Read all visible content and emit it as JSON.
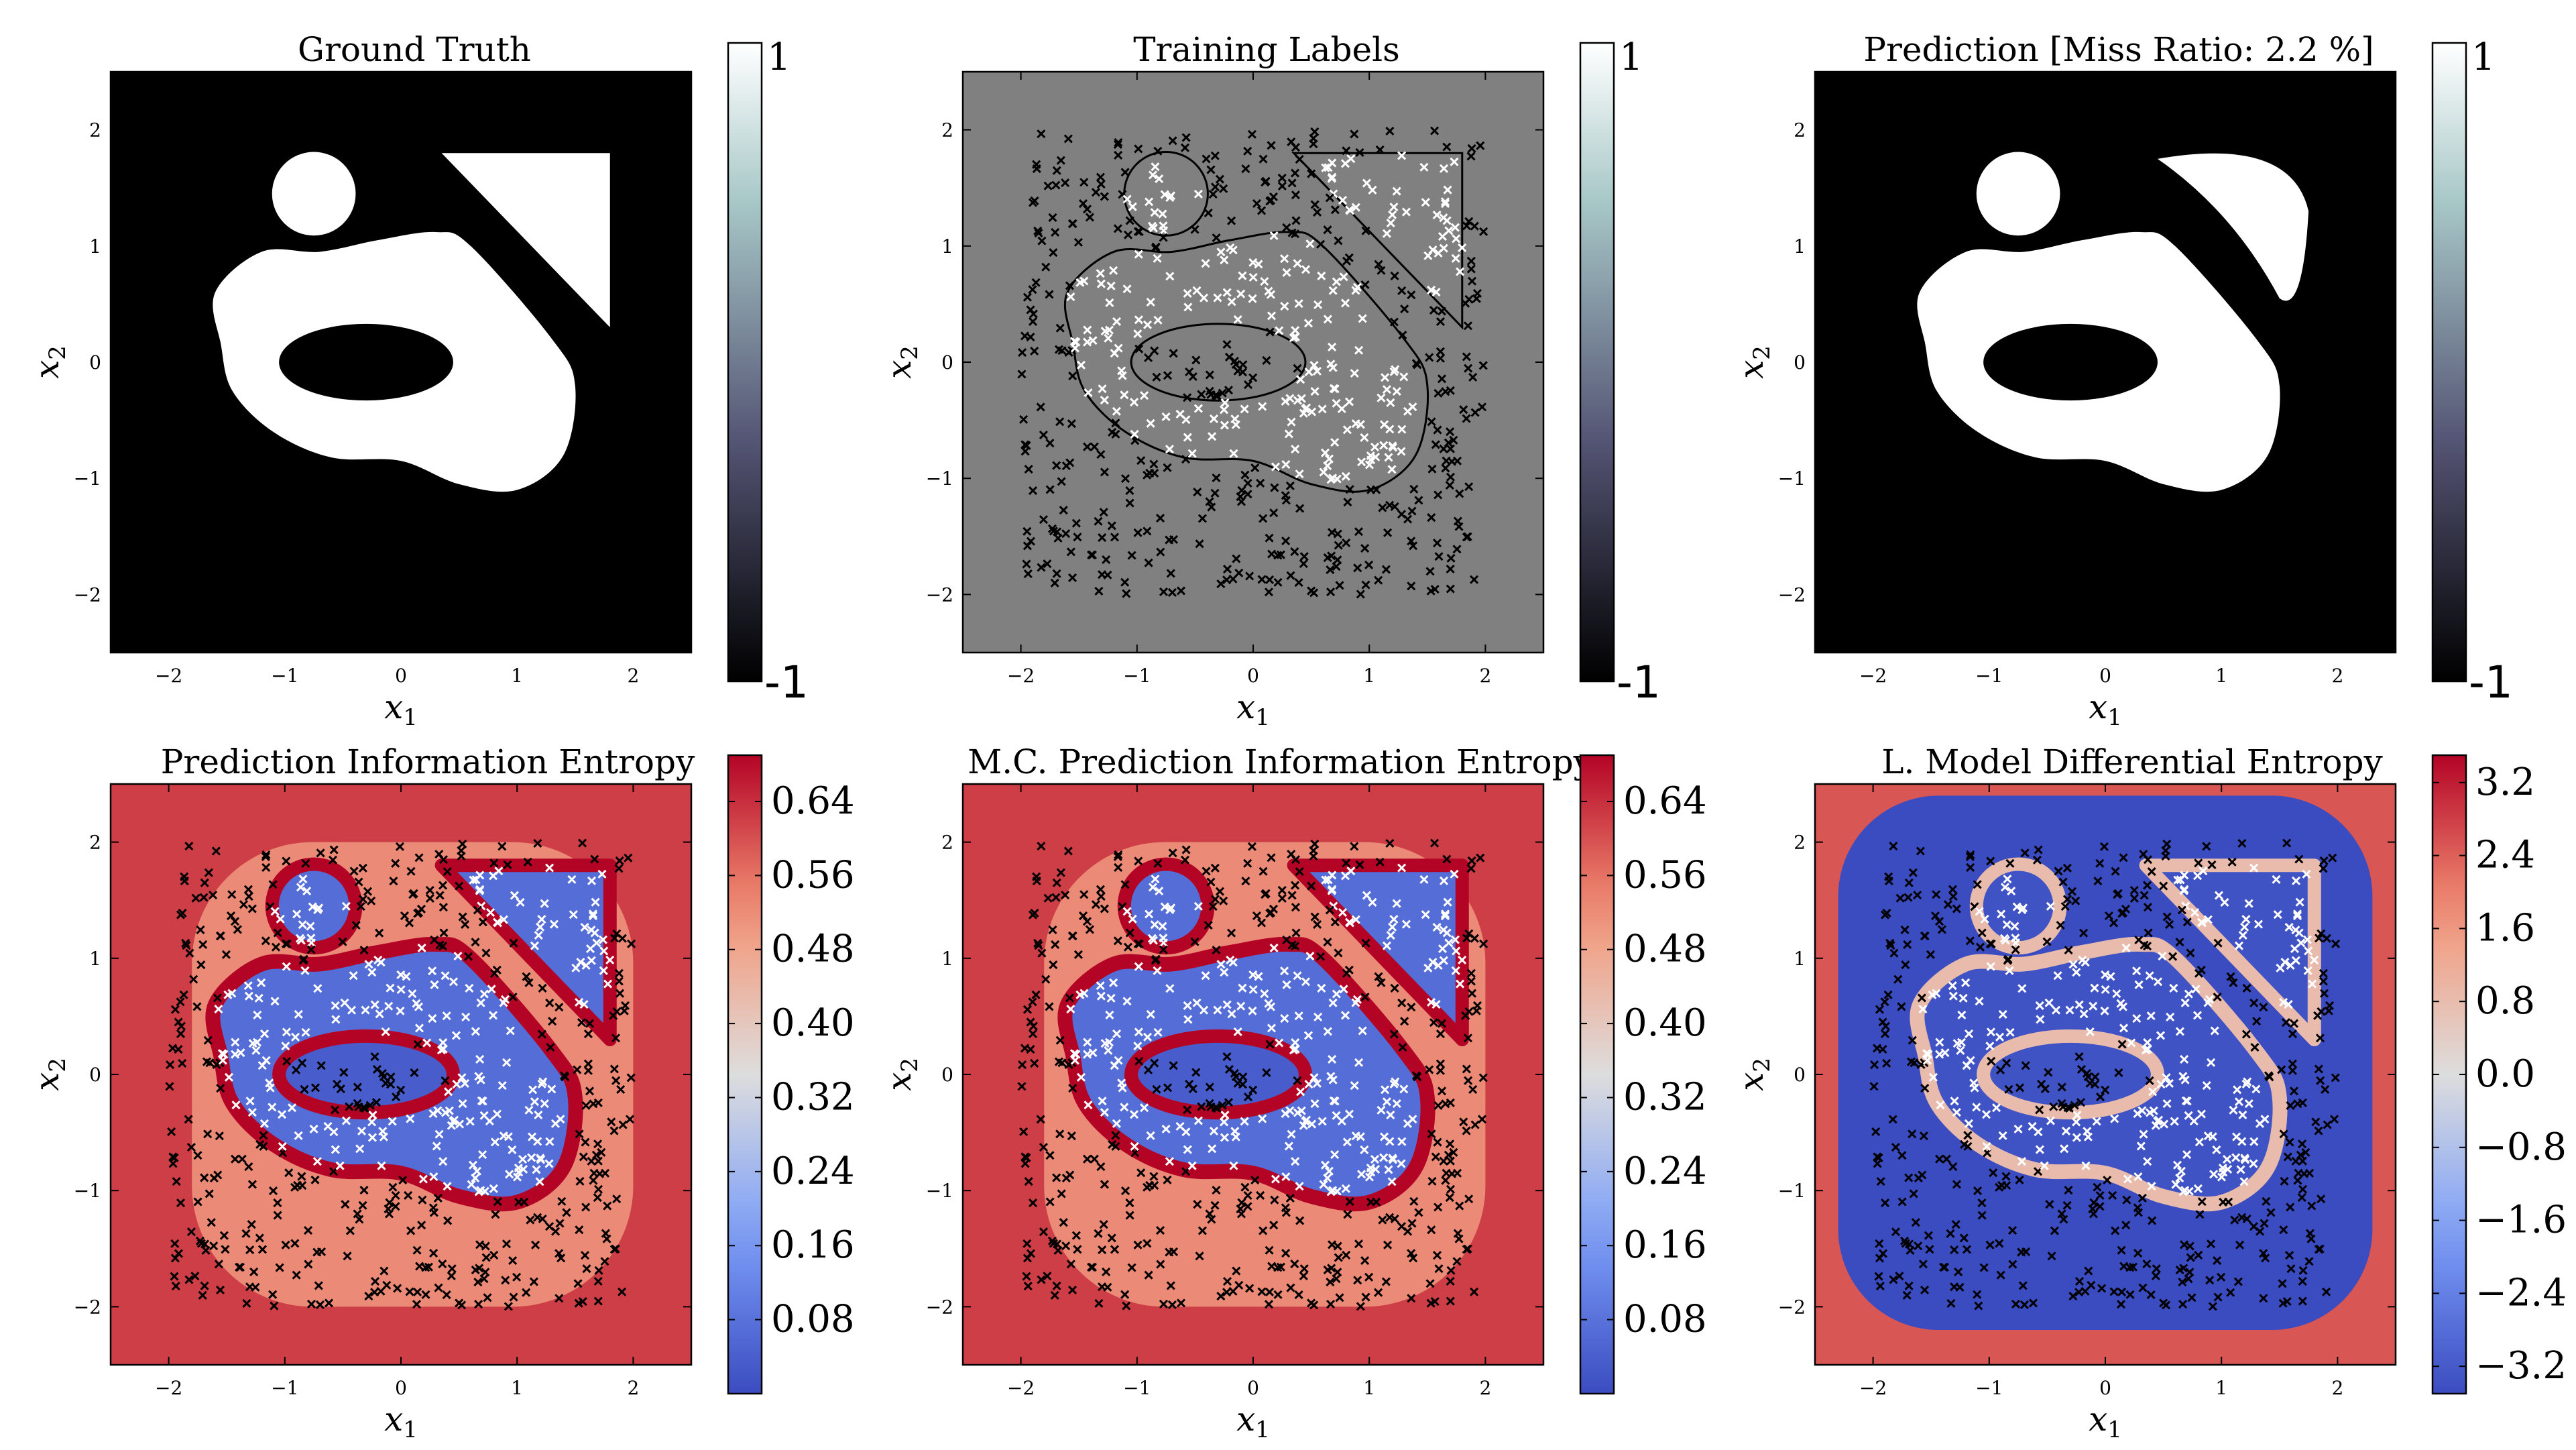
{
  "chart_data": [
    {
      "type": "heatmap",
      "title": "Ground Truth",
      "xlabel": "x_1",
      "ylabel": "x_2",
      "xlim": [
        -2.5,
        2.5
      ],
      "ylim": [
        -2.5,
        2.5
      ],
      "xticks": [
        "−2",
        "−1",
        "0",
        "1",
        "2"
      ],
      "yticks": [
        "2",
        "1",
        "0",
        "−1",
        "−2"
      ],
      "colorbar": {
        "min": -1,
        "max": 1,
        "tick_labels": [
          "1",
          "-1"
        ],
        "colormap": "bone"
      },
      "shapes": {
        "circle_center": [
          -0.75,
          1.45
        ],
        "circle_radius": 0.36,
        "triangle": [
          [
            0.35,
            1.8
          ],
          [
            1.8,
            1.8
          ],
          [
            1.8,
            0.3
          ]
        ],
        "inner_ellipse_center": [
          -0.3,
          0.0
        ],
        "inner_ellipse_radii": [
          0.75,
          0.33
        ]
      }
    },
    {
      "type": "scatter",
      "title": "Training Labels",
      "xlabel": "x_1",
      "ylabel": "x_2",
      "xlim": [
        -2.5,
        2.5
      ],
      "ylim": [
        -2.5,
        2.5
      ],
      "xticks": [
        "−2",
        "−1",
        "0",
        "1",
        "2"
      ],
      "yticks": [
        "2",
        "1",
        "0",
        "−1",
        "−2"
      ],
      "colorbar": {
        "min": -1,
        "max": 1,
        "tick_labels": [
          "1",
          "-1"
        ],
        "colormap": "bone"
      },
      "series": [
        {
          "label_value": 1,
          "color": "#ffffff",
          "marker": "x"
        },
        {
          "label_value": -1,
          "color": "#000000",
          "marker": "x"
        }
      ],
      "sample_range": [
        -2,
        2
      ],
      "n_points": 620
    },
    {
      "type": "heatmap",
      "title": "Prediction [Miss Ratio: 2.2 %]",
      "miss_ratio_percent": 2.2,
      "xlabel": "x_1",
      "ylabel": "x_2",
      "xlim": [
        -2.5,
        2.5
      ],
      "ylim": [
        -2.5,
        2.5
      ],
      "xticks": [
        "−2",
        "−1",
        "0",
        "1",
        "2"
      ],
      "yticks": [
        "2",
        "1",
        "0",
        "−1",
        "−2"
      ],
      "colorbar": {
        "min": -1,
        "max": 1,
        "tick_labels": [
          "1",
          "-1"
        ],
        "colormap": "bone"
      }
    },
    {
      "type": "heatmap",
      "title": "Prediction Information Entropy",
      "xlabel": "x_1",
      "ylabel": "x_2",
      "xlim": [
        -2.5,
        2.5
      ],
      "ylim": [
        -2.5,
        2.5
      ],
      "xticks": [
        "−2",
        "−1",
        "0",
        "1",
        "2"
      ],
      "yticks": [
        "2",
        "1",
        "0",
        "−1",
        "−2"
      ],
      "colorbar": {
        "min": 0.0,
        "max": 0.69,
        "tick_values": [
          0.08,
          0.16,
          0.24,
          0.32,
          0.4,
          0.48,
          0.56,
          0.64
        ],
        "tick_labels": [
          "0.64",
          "0.56",
          "0.48",
          "0.40",
          "0.32",
          "0.24",
          "0.16",
          "0.08"
        ],
        "colormap": "coolwarm"
      }
    },
    {
      "type": "heatmap",
      "title": "M.C. Prediction Information Entropy",
      "xlabel": "x_1",
      "ylabel": "x_2",
      "xlim": [
        -2.5,
        2.5
      ],
      "ylim": [
        -2.5,
        2.5
      ],
      "xticks": [
        "−2",
        "−1",
        "0",
        "1",
        "2"
      ],
      "yticks": [
        "2",
        "1",
        "0",
        "−1",
        "−2"
      ],
      "colorbar": {
        "min": 0.0,
        "max": 0.69,
        "tick_values": [
          0.08,
          0.16,
          0.24,
          0.32,
          0.4,
          0.48,
          0.56,
          0.64
        ],
        "tick_labels": [
          "0.64",
          "0.56",
          "0.48",
          "0.40",
          "0.32",
          "0.24",
          "0.16",
          "0.08"
        ],
        "colormap": "coolwarm"
      }
    },
    {
      "type": "heatmap",
      "title": "L. Model Differential Entropy",
      "xlabel": "x_1",
      "ylabel": "x_2",
      "xlim": [
        -2.5,
        2.5
      ],
      "ylim": [
        -2.5,
        2.5
      ],
      "xticks": [
        "−2",
        "−1",
        "0",
        "1",
        "2"
      ],
      "yticks": [
        "2",
        "1",
        "0",
        "−1",
        "−2"
      ],
      "colorbar": {
        "min": -3.5,
        "max": 3.5,
        "tick_values": [
          3.2,
          2.4,
          1.6,
          0.8,
          0.0,
          -0.8,
          -1.6,
          -2.4,
          -3.2
        ],
        "tick_labels": [
          "3.2",
          "2.4",
          "1.6",
          "0.8",
          "0.0",
          "−0.8",
          "−1.6",
          "−2.4",
          "−3.2"
        ],
        "colormap": "coolwarm"
      }
    }
  ],
  "colors": {
    "class_pos": "#ffffff",
    "class_neg": "#000000",
    "unlabeled_bg": "#808080",
    "cool": "#3b4cc0",
    "warm": "#b40426"
  }
}
